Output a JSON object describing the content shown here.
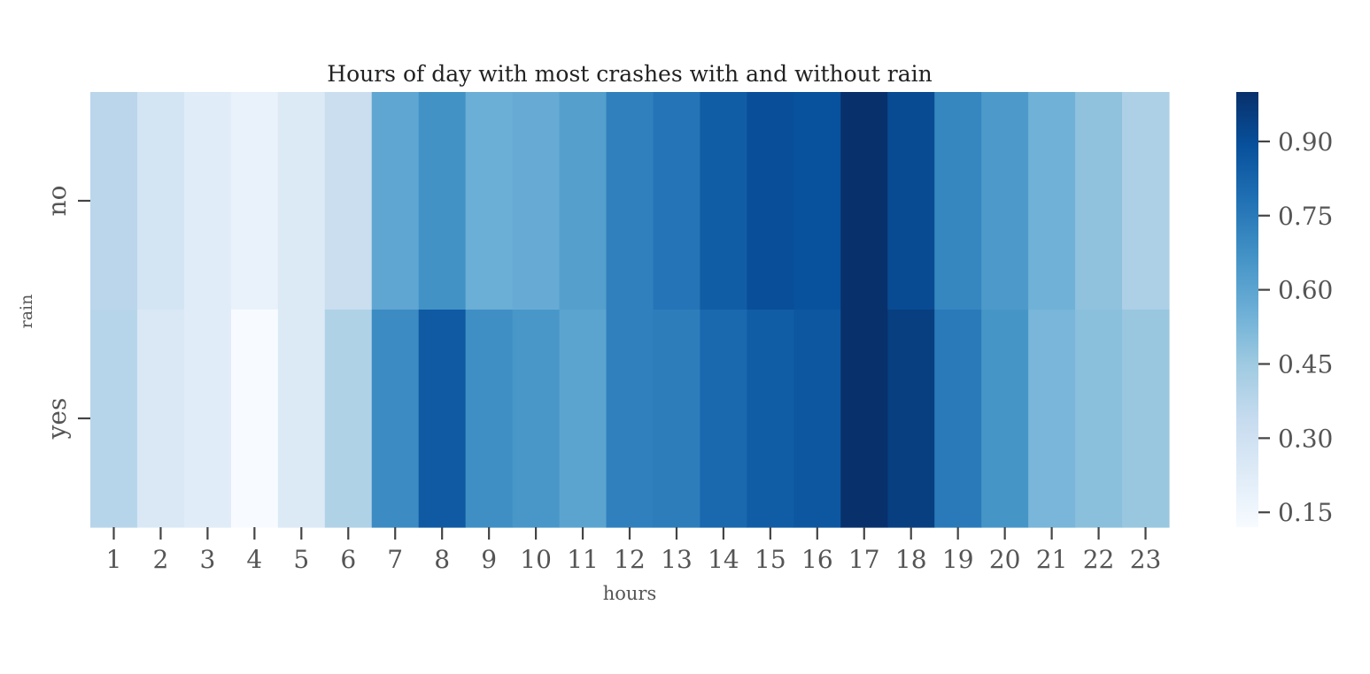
{
  "chart_data": {
    "type": "heatmap",
    "title": "Hours of day with most crashes with and without rain",
    "xlabel": "hours",
    "ylabel": "rain",
    "x_categories": [
      "1",
      "2",
      "3",
      "4",
      "5",
      "6",
      "7",
      "8",
      "9",
      "10",
      "11",
      "12",
      "13",
      "14",
      "15",
      "16",
      "17",
      "18",
      "19",
      "20",
      "21",
      "22",
      "23"
    ],
    "y_categories": [
      "no",
      "yes"
    ],
    "values": [
      [
        0.37,
        0.28,
        0.22,
        0.18,
        0.24,
        0.32,
        0.59,
        0.67,
        0.56,
        0.57,
        0.62,
        0.73,
        0.77,
        0.85,
        0.9,
        0.89,
        1.0,
        0.91,
        0.71,
        0.64,
        0.55,
        0.48,
        0.41
      ],
      [
        0.38,
        0.25,
        0.22,
        0.12,
        0.24,
        0.4,
        0.69,
        0.86,
        0.68,
        0.65,
        0.6,
        0.73,
        0.74,
        0.81,
        0.85,
        0.87,
        1.0,
        0.95,
        0.75,
        0.66,
        0.53,
        0.49,
        0.46
      ]
    ],
    "colormap": "Blues",
    "colorbar": {
      "vmin": 0.12,
      "vmax": 1.0,
      "ticks": [
        0.15,
        0.3,
        0.45,
        0.6,
        0.75,
        0.9
      ],
      "tick_labels": [
        "0.15",
        "0.30",
        "0.45",
        "0.60",
        "0.75",
        "0.90"
      ]
    },
    "grid": false,
    "legend": "colorbar-right"
  }
}
